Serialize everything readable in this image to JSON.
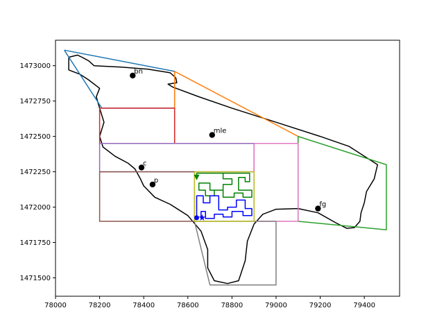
{
  "chart_data": {
    "type": "line",
    "title": "",
    "xlabel": "",
    "ylabel": "",
    "xlim": [
      78000,
      79560
    ],
    "ylim": [
      1471370,
      1473180
    ],
    "grid": false,
    "xticks": [
      78000,
      78200,
      78400,
      78600,
      78800,
      79000,
      79200,
      79400
    ],
    "yticks": [
      1471500,
      1471750,
      1472000,
      1472250,
      1472500,
      1472750,
      1473000
    ],
    "xtick_labels": [
      "78000",
      "78200",
      "78400",
      "78600",
      "78800",
      "79000",
      "79200",
      "79400"
    ],
    "ytick_labels": [
      "1471500",
      "1471750",
      "1472000",
      "1472250",
      "1472500",
      "1472750",
      "1473000"
    ],
    "series": [
      {
        "color": "#000000",
        "points": [
          [
            78060,
            1473060
          ],
          [
            78100,
            1473075
          ],
          [
            78120,
            1473060
          ],
          [
            78150,
            1473035
          ],
          [
            78175,
            1473000
          ],
          [
            78300,
            1472990
          ],
          [
            78420,
            1472975
          ],
          [
            78520,
            1472950
          ],
          [
            78545,
            1472915
          ],
          [
            78550,
            1472880
          ],
          [
            78510,
            1472870
          ],
          [
            78530,
            1472850
          ],
          [
            78650,
            1472780
          ],
          [
            78800,
            1472700
          ],
          [
            79000,
            1472600
          ],
          [
            79200,
            1472500
          ],
          [
            79330,
            1472430
          ],
          [
            79420,
            1472340
          ],
          [
            79460,
            1472300
          ],
          [
            79445,
            1472200
          ],
          [
            79410,
            1472110
          ],
          [
            79400,
            1472030
          ],
          [
            79385,
            1471960
          ],
          [
            79380,
            1471900
          ],
          [
            79355,
            1471855
          ],
          [
            79320,
            1471850
          ],
          [
            79270,
            1471890
          ],
          [
            79190,
            1471960
          ],
          [
            79100,
            1471990
          ],
          [
            79000,
            1471985
          ],
          [
            78940,
            1471950
          ],
          [
            78900,
            1471880
          ],
          [
            78870,
            1471760
          ],
          [
            78860,
            1471620
          ],
          [
            78830,
            1471480
          ],
          [
            78780,
            1471460
          ],
          [
            78720,
            1471480
          ],
          [
            78690,
            1471570
          ],
          [
            78690,
            1471700
          ],
          [
            78660,
            1471830
          ],
          [
            78600,
            1471940
          ],
          [
            78520,
            1472020
          ],
          [
            78450,
            1472070
          ],
          [
            78400,
            1472150
          ],
          [
            78385,
            1472200
          ],
          [
            78360,
            1472270
          ],
          [
            78330,
            1472310
          ],
          [
            78270,
            1472360
          ],
          [
            78215,
            1472425
          ],
          [
            78200,
            1472500
          ],
          [
            78220,
            1472600
          ],
          [
            78200,
            1472700
          ],
          [
            78185,
            1472780
          ],
          [
            78200,
            1472840
          ],
          [
            78150,
            1472900
          ],
          [
            78110,
            1472940
          ],
          [
            78060,
            1472970
          ],
          [
            78060,
            1473020
          ],
          [
            78060,
            1473060
          ]
        ]
      },
      {
        "color": "#1f77b4",
        "points": [
          [
            78040,
            1473110
          ],
          [
            78540,
            1472960
          ],
          [
            78540,
            1472700
          ],
          [
            78210,
            1472700
          ],
          [
            78040,
            1473110
          ]
        ]
      },
      {
        "color": "#ff7f0e",
        "points": [
          [
            78540,
            1472960
          ],
          [
            79100,
            1472500
          ],
          [
            79100,
            1472450
          ],
          [
            78900,
            1472450
          ],
          [
            78540,
            1472450
          ],
          [
            78540,
            1472700
          ],
          [
            78540,
            1472960
          ]
        ]
      },
      {
        "color": "#2ca02c",
        "points": [
          [
            79100,
            1472500
          ],
          [
            79500,
            1472300
          ],
          [
            79500,
            1471840
          ],
          [
            79100,
            1471900
          ],
          [
            79100,
            1472500
          ]
        ]
      },
      {
        "color": "#d62728",
        "points": [
          [
            78200,
            1472700
          ],
          [
            78540,
            1472700
          ],
          [
            78540,
            1472450
          ],
          [
            78200,
            1472450
          ],
          [
            78200,
            1472700
          ]
        ]
      },
      {
        "color": "#9467bd",
        "points": [
          [
            78200,
            1472450
          ],
          [
            78900,
            1472450
          ],
          [
            78900,
            1472250
          ],
          [
            78200,
            1472250
          ],
          [
            78200,
            1472450
          ]
        ]
      },
      {
        "color": "#8c564b",
        "points": [
          [
            78200,
            1472250
          ],
          [
            78630,
            1472250
          ],
          [
            78630,
            1471900
          ],
          [
            78200,
            1471900
          ],
          [
            78200,
            1472250
          ]
        ]
      },
      {
        "color": "#e377c2",
        "points": [
          [
            78900,
            1472450
          ],
          [
            79100,
            1472450
          ],
          [
            79100,
            1471900
          ],
          [
            78900,
            1471900
          ],
          [
            78900,
            1472450
          ]
        ]
      },
      {
        "color": "#7f7f7f",
        "points": [
          [
            78630,
            1471900
          ],
          [
            79000,
            1471900
          ],
          [
            79000,
            1471450
          ],
          [
            78700,
            1471450
          ],
          [
            78630,
            1471900
          ]
        ]
      },
      {
        "color": "#bcbd22",
        "points": [
          [
            78630,
            1472250
          ],
          [
            78900,
            1472250
          ],
          [
            78900,
            1471900
          ],
          [
            78630,
            1471900
          ],
          [
            78630,
            1472250
          ]
        ]
      },
      {
        "color": "#008000",
        "points": [
          [
            78640,
            1472230
          ],
          [
            78640,
            1472240
          ],
          [
            78880,
            1472240
          ],
          [
            78880,
            1472180
          ],
          [
            78860,
            1472180
          ],
          [
            78860,
            1472210
          ],
          [
            78830,
            1472210
          ],
          [
            78830,
            1472120
          ],
          [
            78890,
            1472120
          ],
          [
            78890,
            1472070
          ],
          [
            78850,
            1472070
          ],
          [
            78850,
            1472100
          ],
          [
            78810,
            1472100
          ],
          [
            78810,
            1472070
          ],
          [
            78760,
            1472070
          ],
          [
            78760,
            1472120
          ],
          [
            78720,
            1472120
          ],
          [
            78720,
            1472080
          ],
          [
            78680,
            1472080
          ],
          [
            78680,
            1472120
          ],
          [
            78650,
            1472120
          ],
          [
            78650,
            1472170
          ],
          [
            78700,
            1472170
          ],
          [
            78700,
            1472120
          ],
          [
            78760,
            1472120
          ],
          [
            78760,
            1472160
          ],
          [
            78800,
            1472160
          ],
          [
            78800,
            1472200
          ],
          [
            78760,
            1472200
          ],
          [
            78760,
            1472240
          ]
        ]
      },
      {
        "color": "#0000ff",
        "points": [
          [
            78640,
            1471920
          ],
          [
            78640,
            1472080
          ],
          [
            78670,
            1472080
          ],
          [
            78670,
            1472030
          ],
          [
            78700,
            1472030
          ],
          [
            78700,
            1472080
          ],
          [
            78740,
            1472080
          ],
          [
            78740,
            1471980
          ],
          [
            78780,
            1471980
          ],
          [
            78780,
            1472000
          ],
          [
            78820,
            1472000
          ],
          [
            78820,
            1472050
          ],
          [
            78860,
            1472050
          ],
          [
            78860,
            1471990
          ],
          [
            78890,
            1471990
          ],
          [
            78890,
            1471940
          ],
          [
            78850,
            1471940
          ],
          [
            78850,
            1471970
          ],
          [
            78800,
            1471970
          ],
          [
            78800,
            1471930
          ],
          [
            78760,
            1471930
          ],
          [
            78760,
            1471950
          ],
          [
            78720,
            1471950
          ],
          [
            78720,
            1471920
          ],
          [
            78680,
            1471920
          ],
          [
            78680,
            1471970
          ],
          [
            78660,
            1471970
          ],
          [
            78660,
            1471920
          ]
        ]
      }
    ],
    "points": [
      {
        "label": "bn",
        "x": 78350,
        "y": 1472930
      },
      {
        "label": "mle",
        "x": 78710,
        "y": 1472510
      },
      {
        "label": "c",
        "x": 78390,
        "y": 1472280
      },
      {
        "label": "p",
        "x": 78440,
        "y": 1472160
      },
      {
        "label": "fg",
        "x": 79190,
        "y": 1471990
      }
    ],
    "markers": [
      {
        "shape": "triangle",
        "color": "#008000",
        "x": 78640,
        "y": 1472210
      },
      {
        "shape": "circle",
        "color": "#0000ff",
        "x": 78640,
        "y": 1471925
      },
      {
        "shape": "star",
        "color": "#0000ff",
        "x": 78665,
        "y": 1471925
      }
    ]
  }
}
